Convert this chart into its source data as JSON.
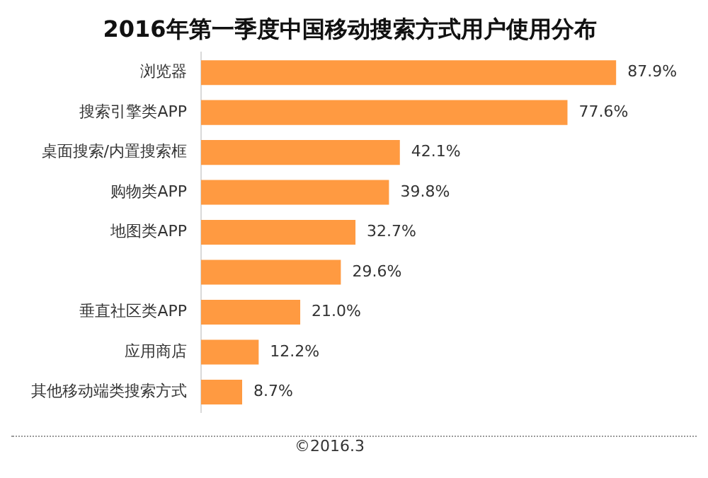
{
  "chart_data": {
    "type": "bar",
    "orientation": "horizontal",
    "title": "2016年第一季度中国移动搜索方式用户使用分布",
    "categories": [
      "浏览器",
      "搜索引擎类APP",
      "桌面搜索/内置搜索框",
      "购物类APP",
      "地图类APP",
      null,
      "垂直社区类APP",
      "应用商店",
      "其他移动端类搜索方式"
    ],
    "values": [
      87.9,
      77.6,
      42.1,
      39.8,
      32.7,
      29.6,
      21.0,
      12.2,
      8.7
    ],
    "value_labels": [
      "87.9%",
      "77.6%",
      "42.1%",
      "39.8%",
      "32.7%",
      "29.6%",
      "21.0%",
      "12.2%",
      "8.7%"
    ],
    "color": "#ff9a41",
    "grid": false,
    "legend": false,
    "annotations": [
      "©2016.3"
    ]
  }
}
